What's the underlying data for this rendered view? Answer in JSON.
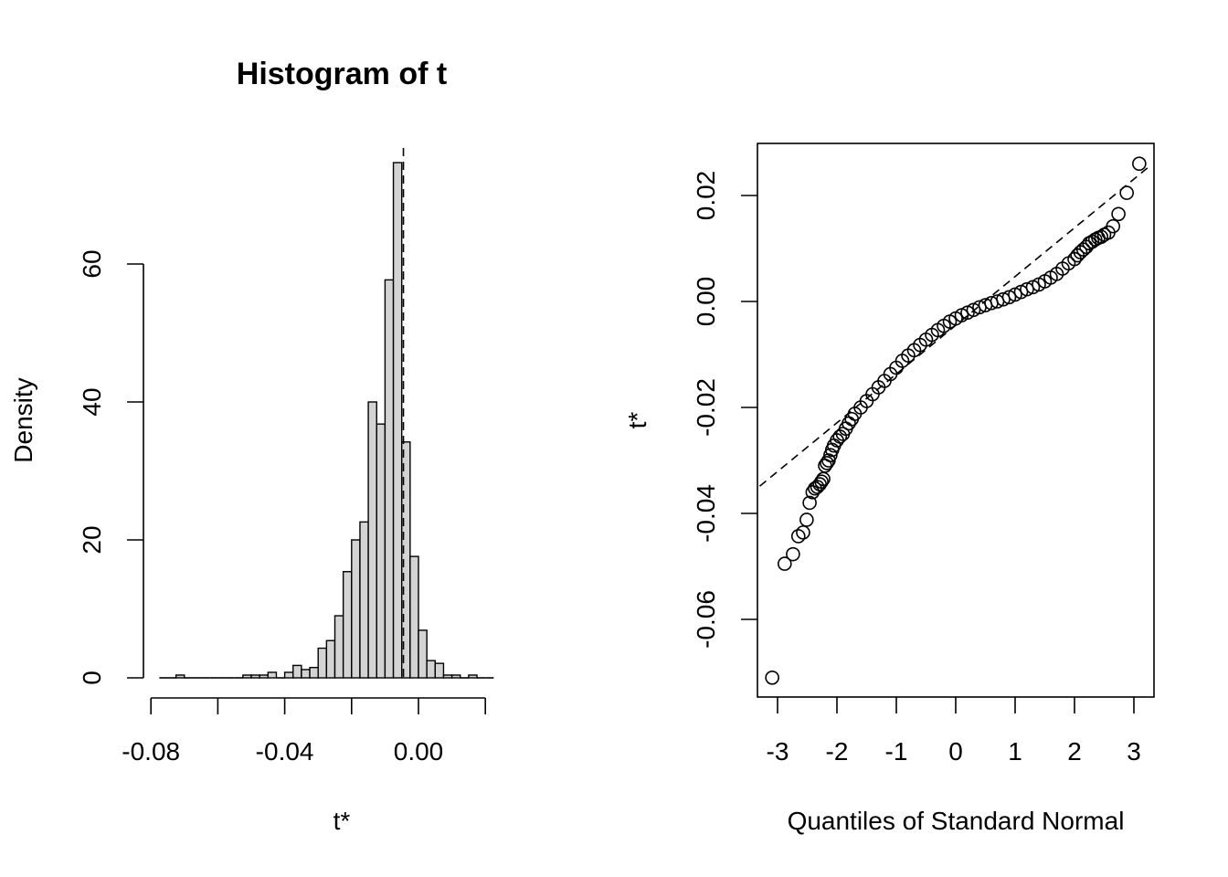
{
  "chart_data": [
    {
      "type": "histogram",
      "title": "Histogram of t",
      "xlabel": "t*",
      "ylabel": "Density",
      "xlim": [
        -0.08,
        0.03
      ],
      "ylim": [
        0,
        75
      ],
      "x_ticks": [
        "-0.08",
        "-0.04",
        "0.00"
      ],
      "x_tick_values": [
        -0.08,
        -0.06,
        -0.04,
        -0.02,
        0.0,
        0.02
      ],
      "y_ticks": [
        "0",
        "20",
        "40",
        "60"
      ],
      "y_tick_values": [
        0,
        20,
        40,
        60
      ],
      "bin_width": 0.0025,
      "bins": [
        {
          "x0": -0.0775,
          "x1": -0.075,
          "density": 0
        },
        {
          "x0": -0.075,
          "x1": -0.0725,
          "density": 0
        },
        {
          "x0": -0.0725,
          "x1": -0.07,
          "density": 0.4
        },
        {
          "x0": -0.07,
          "x1": -0.0675,
          "density": 0
        },
        {
          "x0": -0.0675,
          "x1": -0.065,
          "density": 0
        },
        {
          "x0": -0.065,
          "x1": -0.0625,
          "density": 0
        },
        {
          "x0": -0.0625,
          "x1": -0.06,
          "density": 0
        },
        {
          "x0": -0.06,
          "x1": -0.0575,
          "density": 0
        },
        {
          "x0": -0.0575,
          "x1": -0.055,
          "density": 0
        },
        {
          "x0": -0.055,
          "x1": -0.0525,
          "density": 0
        },
        {
          "x0": -0.0525,
          "x1": -0.05,
          "density": 0.4
        },
        {
          "x0": -0.05,
          "x1": -0.0475,
          "density": 0.4
        },
        {
          "x0": -0.0475,
          "x1": -0.045,
          "density": 0.4
        },
        {
          "x0": -0.045,
          "x1": -0.0425,
          "density": 0.8
        },
        {
          "x0": -0.0425,
          "x1": -0.04,
          "density": 0
        },
        {
          "x0": -0.04,
          "x1": -0.0375,
          "density": 0.8
        },
        {
          "x0": -0.0375,
          "x1": -0.035,
          "density": 1.8
        },
        {
          "x0": -0.035,
          "x1": -0.0325,
          "density": 1.2
        },
        {
          "x0": -0.0325,
          "x1": -0.03,
          "density": 1.5
        },
        {
          "x0": -0.03,
          "x1": -0.0275,
          "density": 4.3
        },
        {
          "x0": -0.0275,
          "x1": -0.025,
          "density": 5.4
        },
        {
          "x0": -0.025,
          "x1": -0.0225,
          "density": 9.0
        },
        {
          "x0": -0.0225,
          "x1": -0.02,
          "density": 15.4
        },
        {
          "x0": -0.02,
          "x1": -0.0175,
          "density": 20.0
        },
        {
          "x0": -0.0175,
          "x1": -0.015,
          "density": 22.6
        },
        {
          "x0": -0.015,
          "x1": -0.0125,
          "density": 40.0
        },
        {
          "x0": -0.0125,
          "x1": -0.01,
          "density": 36.8
        },
        {
          "x0": -0.01,
          "x1": -0.0075,
          "density": 57.7
        },
        {
          "x0": -0.0075,
          "x1": -0.005,
          "density": 74.7
        },
        {
          "x0": -0.005,
          "x1": -0.0025,
          "density": 34.2
        },
        {
          "x0": -0.0025,
          "x1": 0.0,
          "density": 17.6
        },
        {
          "x0": 0.0,
          "x1": 0.0025,
          "density": 6.9
        },
        {
          "x0": 0.0025,
          "x1": 0.005,
          "density": 2.5
        },
        {
          "x0": 0.005,
          "x1": 0.0075,
          "density": 2.1
        },
        {
          "x0": 0.0075,
          "x1": 0.01,
          "density": 0.4
        },
        {
          "x0": 0.01,
          "x1": 0.0125,
          "density": 0.4
        },
        {
          "x0": 0.0125,
          "x1": 0.015,
          "density": 0
        },
        {
          "x0": 0.015,
          "x1": 0.0175,
          "density": 0.4
        },
        {
          "x0": 0.0175,
          "x1": 0.02,
          "density": 0
        },
        {
          "x0": 0.02,
          "x1": 0.0225,
          "density": 0
        }
      ],
      "reference_line_x": -0.0045
    },
    {
      "type": "scatter",
      "xlabel": "Quantiles of Standard Normal",
      "ylabel": "t*",
      "xlim": [
        -3.3,
        3.3
      ],
      "ylim": [
        -0.074,
        0.03
      ],
      "x_ticks": [
        "-3",
        "-2",
        "-1",
        "0",
        "1",
        "2",
        "3"
      ],
      "x_tick_values": [
        -3,
        -2,
        -1,
        0,
        1,
        2,
        3
      ],
      "y_ticks": [
        "-0.06",
        "-0.04",
        "-0.02",
        "0.00",
        "0.02"
      ],
      "y_tick_values": [
        -0.06,
        -0.04,
        -0.02,
        0.0,
        0.02
      ],
      "reference_line": {
        "intercept": -0.0045,
        "slope": 0.0092
      },
      "quantile_points": [
        [
          -3.09,
          -0.071
        ],
        [
          -2.88,
          -0.0495
        ],
        [
          -2.74,
          -0.0477
        ],
        [
          -2.65,
          -0.0443
        ],
        [
          -2.57,
          -0.0436
        ],
        [
          -2.51,
          -0.0412
        ],
        [
          -2.46,
          -0.038
        ],
        [
          -2.41,
          -0.036
        ],
        [
          -2.37,
          -0.0353
        ],
        [
          -2.33,
          -0.035
        ],
        [
          -2.29,
          -0.0345
        ],
        [
          -2.26,
          -0.034
        ],
        [
          -2.23,
          -0.0335
        ],
        [
          -2.2,
          -0.031
        ],
        [
          -2.17,
          -0.0305
        ],
        [
          -2.14,
          -0.03
        ],
        [
          -2.11,
          -0.029
        ],
        [
          -2.08,
          -0.028
        ],
        [
          -2.05,
          -0.0272
        ],
        [
          -2.0,
          -0.0262
        ],
        [
          -1.95,
          -0.0255
        ],
        [
          -1.9,
          -0.025
        ],
        [
          -1.85,
          -0.024
        ],
        [
          -1.8,
          -0.023
        ],
        [
          -1.75,
          -0.0222
        ],
        [
          -1.7,
          -0.0212
        ],
        [
          -1.6,
          -0.02
        ],
        [
          -1.5,
          -0.0188
        ],
        [
          -1.4,
          -0.0175
        ],
        [
          -1.3,
          -0.0162
        ],
        [
          -1.2,
          -0.015
        ],
        [
          -1.1,
          -0.0137
        ],
        [
          -1.0,
          -0.0125
        ],
        [
          -0.9,
          -0.0112
        ],
        [
          -0.8,
          -0.0102
        ],
        [
          -0.7,
          -0.0092
        ],
        [
          -0.6,
          -0.0082
        ],
        [
          -0.5,
          -0.0072
        ],
        [
          -0.4,
          -0.0063
        ],
        [
          -0.3,
          -0.0054
        ],
        [
          -0.2,
          -0.0046
        ],
        [
          -0.1,
          -0.0038
        ],
        [
          0.0,
          -0.0032
        ],
        [
          0.1,
          -0.0026
        ],
        [
          0.2,
          -0.0021
        ],
        [
          0.3,
          -0.0016
        ],
        [
          0.4,
          -0.0011
        ],
        [
          0.5,
          -0.0007
        ],
        [
          0.6,
          -0.0003
        ],
        [
          0.7,
          0.0
        ],
        [
          0.8,
          0.0004
        ],
        [
          0.9,
          0.0008
        ],
        [
          1.0,
          0.0013
        ],
        [
          1.1,
          0.0018
        ],
        [
          1.2,
          0.0023
        ],
        [
          1.3,
          0.0027
        ],
        [
          1.4,
          0.0032
        ],
        [
          1.5,
          0.0038
        ],
        [
          1.6,
          0.0045
        ],
        [
          1.7,
          0.0052
        ],
        [
          1.8,
          0.0062
        ],
        [
          1.9,
          0.0072
        ],
        [
          2.0,
          0.008
        ],
        [
          2.05,
          0.0087
        ],
        [
          2.1,
          0.0093
        ],
        [
          2.15,
          0.0098
        ],
        [
          2.2,
          0.0103
        ],
        [
          2.25,
          0.011
        ],
        [
          2.3,
          0.0113
        ],
        [
          2.35,
          0.0117
        ],
        [
          2.4,
          0.012
        ],
        [
          2.45,
          0.0122
        ],
        [
          2.5,
          0.0126
        ],
        [
          2.57,
          0.013
        ],
        [
          2.65,
          0.0142
        ],
        [
          2.74,
          0.0165
        ],
        [
          2.88,
          0.0205
        ],
        [
          3.09,
          0.026
        ]
      ]
    }
  ]
}
